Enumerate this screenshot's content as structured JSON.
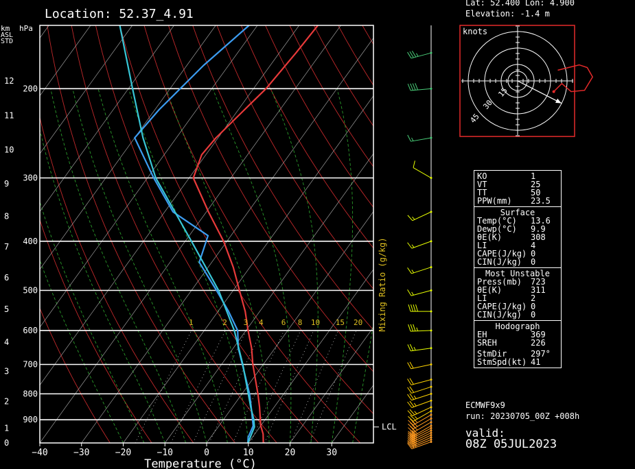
{
  "header": {
    "location": "Location: 52.37_4.91",
    "lat_lon": "Lat: 52.400    Lon: 4.900",
    "elevation": "Elevation: -1.4     m"
  },
  "axes": {
    "km_label": "km",
    "hpa_label": "hPa",
    "asl_label": "ASL",
    "std_label": "STD",
    "xlabel": "Temperature (°C)",
    "mixing_ratio_label": "Mixing Ratio (g/kg)",
    "lcl_label": "LCL"
  },
  "chart_data": {
    "type": "line",
    "title": "",
    "xlabel": "Temperature (°C)",
    "ylabel": "hPa",
    "y_scale": "log",
    "x_range": [
      -40,
      40
    ],
    "p_range": [
      1000,
      150
    ],
    "x_ticks": [
      -40,
      -30,
      -20,
      -10,
      0,
      10,
      20,
      30
    ],
    "p_ticks": [
      200,
      300,
      400,
      500,
      600,
      700,
      800,
      900
    ],
    "km_ticks": [
      {
        "km": "0",
        "p": 1000
      },
      {
        "km": "1",
        "p": 935
      },
      {
        "km": "2",
        "p": 828
      },
      {
        "km": "3",
        "p": 722
      },
      {
        "km": "4",
        "p": 633
      },
      {
        "km": "5",
        "p": 545
      },
      {
        "km": "6",
        "p": 472
      },
      {
        "km": "7",
        "p": 410
      },
      {
        "km": "8",
        "p": 357
      },
      {
        "km": "9",
        "p": 308
      },
      {
        "km": "10",
        "p": 264
      },
      {
        "km": "11",
        "p": 226
      },
      {
        "km": "12",
        "p": 193
      }
    ],
    "mixing_ratio_labels": [
      "1",
      "2",
      "3",
      "4",
      "6",
      "8",
      "10",
      "15",
      "20"
    ],
    "series": [
      {
        "kind": "temperature",
        "color": "#e83a3a",
        "points": [
          [
            1000,
            13.6
          ],
          [
            960,
            12.0
          ],
          [
            925,
            10.0
          ],
          [
            850,
            6.5
          ],
          [
            800,
            3.8
          ],
          [
            700,
            -2.5
          ],
          [
            650,
            -5.6
          ],
          [
            600,
            -9.5
          ],
          [
            550,
            -13.5
          ],
          [
            500,
            -18.5
          ],
          [
            450,
            -24.0
          ],
          [
            400,
            -30.8
          ],
          [
            350,
            -39.5
          ],
          [
            300,
            -49.0
          ],
          [
            270,
            -51.0
          ],
          [
            250,
            -50.5
          ],
          [
            220,
            -48.5
          ],
          [
            200,
            -47.0
          ],
          [
            170,
            -46.0
          ],
          [
            150,
            -45.5
          ]
        ]
      },
      {
        "kind": "dewpoint",
        "color": "#3c9cf0",
        "points": [
          [
            1000,
            9.9
          ],
          [
            975,
            9.0
          ],
          [
            925,
            8.2
          ],
          [
            850,
            4.5
          ],
          [
            800,
            1.8
          ],
          [
            700,
            -5.0
          ],
          [
            650,
            -8.8
          ],
          [
            600,
            -12.0
          ],
          [
            550,
            -17.5
          ],
          [
            500,
            -24.0
          ],
          [
            440,
            -33.0
          ],
          [
            390,
            -35.5
          ],
          [
            350,
            -48.0
          ],
          [
            300,
            -58.5
          ],
          [
            250,
            -70.0
          ],
          [
            220,
            -69.0
          ],
          [
            180,
            -66.0
          ],
          [
            150,
            -62.0
          ]
        ]
      },
      {
        "kind": "parcel",
        "color": "#38c6d6",
        "points": [
          [
            1000,
            9.9
          ],
          [
            930,
            8.7
          ],
          [
            900,
            7.3
          ],
          [
            850,
            4.4
          ],
          [
            800,
            1.5
          ],
          [
            700,
            -4.9
          ],
          [
            600,
            -12.8
          ],
          [
            500,
            -23.5
          ],
          [
            400,
            -38.5
          ],
          [
            300,
            -58.0
          ],
          [
            250,
            -68.0
          ],
          [
            200,
            -79.0
          ],
          [
            150,
            -93.0
          ]
        ]
      }
    ],
    "wind_barbs": [
      {
        "p": 995,
        "dir": 250,
        "spd": 30
      },
      {
        "p": 985,
        "dir": 248,
        "spd": 30
      },
      {
        "p": 975,
        "dir": 246,
        "spd": 32
      },
      {
        "p": 965,
        "dir": 245,
        "spd": 32
      },
      {
        "p": 955,
        "dir": 244,
        "spd": 32
      },
      {
        "p": 945,
        "dir": 243,
        "spd": 30
      },
      {
        "p": 935,
        "dir": 242,
        "spd": 30
      },
      {
        "p": 925,
        "dir": 240,
        "spd": 30
      },
      {
        "p": 910,
        "dir": 240,
        "spd": 28
      },
      {
        "p": 895,
        "dir": 240,
        "spd": 28
      },
      {
        "p": 880,
        "dir": 240,
        "spd": 25
      },
      {
        "p": 865,
        "dir": 240,
        "spd": 25
      },
      {
        "p": 850,
        "dir": 245,
        "spd": 25
      },
      {
        "p": 825,
        "dir": 250,
        "spd": 25
      },
      {
        "p": 800,
        "dir": 252,
        "spd": 25
      },
      {
        "p": 775,
        "dir": 252,
        "spd": 22
      },
      {
        "p": 750,
        "dir": 255,
        "spd": 20
      },
      {
        "p": 700,
        "dir": 258,
        "spd": 20
      },
      {
        "p": 650,
        "dir": 262,
        "spd": 25
      },
      {
        "p": 600,
        "dir": 268,
        "spd": 35
      },
      {
        "p": 550,
        "dir": 270,
        "spd": 40
      },
      {
        "p": 500,
        "dir": 255,
        "spd": 15
      },
      {
        "p": 450,
        "dir": 252,
        "spd": 15
      },
      {
        "p": 400,
        "dir": 250,
        "spd": 15
      },
      {
        "p": 350,
        "dir": 245,
        "spd": 15
      },
      {
        "p": 300,
        "dir": 300,
        "spd": 12
      },
      {
        "p": 250,
        "dir": 260,
        "spd": 15
      },
      {
        "p": 200,
        "dir": 265,
        "spd": 40
      },
      {
        "p": 170,
        "dir": 255,
        "spd": 35
      }
    ],
    "hodograph": {
      "label": "knots",
      "ring_labels": [
        "15",
        "30",
        "45"
      ],
      "storm_motion": {
        "dir": 297,
        "spd": 41
      },
      "points": [
        [
          27,
          8
        ],
        [
          33,
          2
        ],
        [
          40,
          8
        ],
        [
          50,
          7
        ],
        [
          56,
          -3
        ],
        [
          52,
          -10
        ],
        [
          46,
          -12
        ],
        [
          38,
          -10
        ],
        [
          30,
          -8
        ]
      ]
    }
  },
  "indices": {
    "general": [
      {
        "k": "KO",
        "v": "1"
      },
      {
        "k": "VT",
        "v": "25"
      },
      {
        "k": "TT",
        "v": "50"
      },
      {
        "k": "PPW(mm)",
        "v": "23.5"
      }
    ],
    "surface_title": "Surface",
    "surface": [
      {
        "k": "Temp(°C)",
        "v": "13.6"
      },
      {
        "k": "Dewp(°C)",
        "v": "9.9"
      },
      {
        "k": "θE(K)",
        "v": "308"
      },
      {
        "k": "LI",
        "v": "4"
      },
      {
        "k": "CAPE(J/kg)",
        "v": "0"
      },
      {
        "k": "CIN(J/kg)",
        "v": "0"
      }
    ],
    "unstable_title": "Most Unstable",
    "unstable": [
      {
        "k": "Press(mb)",
        "v": "723"
      },
      {
        "k": "θE(K)",
        "v": "311"
      },
      {
        "k": "LI",
        "v": "2"
      },
      {
        "k": "CAPE(J/kg)",
        "v": "0"
      },
      {
        "k": "CIN(J/kg)",
        "v": "0"
      }
    ],
    "hodo_title": "Hodograph",
    "hodo": [
      {
        "k": "EH",
        "v": "369"
      },
      {
        "k": "SREH",
        "v": "226"
      },
      {
        "k": "StmDir",
        "v": "297°"
      },
      {
        "k": "StmSpd(kt)",
        "v": "41"
      }
    ]
  },
  "model": {
    "name": "ECMWF9x9",
    "run": "run:  20230705_00Z +008h",
    "valid_label": "valid:",
    "valid_time": "08Z 05JUL2023"
  }
}
